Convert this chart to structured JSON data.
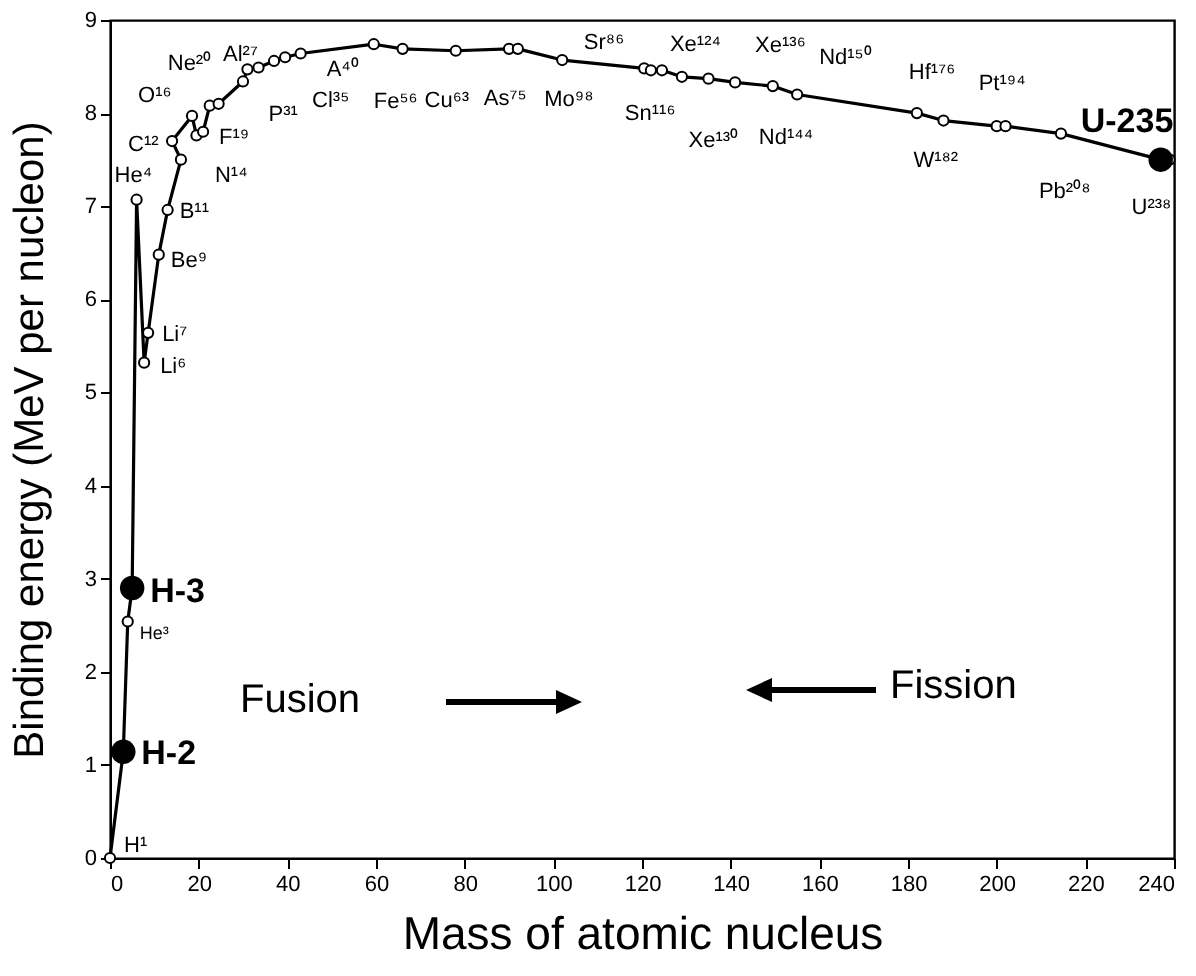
{
  "chart_data": {
    "type": "line",
    "xlabel": "Mass of atomic nucleus",
    "ylabel": "Binding energy (MeV per nucleon)",
    "xlim": [
      0,
      240
    ],
    "xticks": [
      0,
      20,
      40,
      60,
      80,
      100,
      120,
      140,
      160,
      180,
      200,
      220,
      240
    ],
    "ylim": [
      0,
      9
    ],
    "yticks": [
      0,
      1,
      2,
      3,
      4,
      5,
      6,
      7,
      8,
      9
    ],
    "series": [
      {
        "color": "#000000",
        "marker": "circle",
        "x": [
          0,
          3,
          4,
          5,
          6,
          7.7,
          8.6,
          11,
          13,
          16,
          14,
          18.5,
          19.5,
          21,
          22.5,
          24.5,
          30,
          31,
          33.5,
          37,
          39.5,
          43,
          59.5,
          66,
          78,
          90,
          92,
          102,
          120.5,
          122,
          124.5,
          129,
          135,
          141,
          149.5,
          155,
          182,
          188,
          200,
          202,
          214.5,
          237,
          239
        ],
        "values": [
          0,
          1.14,
          2.54,
          2.9,
          7.07,
          5.32,
          5.64,
          6.48,
          6.96,
          7.5,
          7.7,
          7.97,
          7.76,
          7.8,
          8.08,
          8.1,
          8.34,
          8.47,
          8.49,
          8.56,
          8.6,
          8.64,
          8.74,
          8.69,
          8.67,
          8.69,
          8.69,
          8.57,
          8.48,
          8.46,
          8.46,
          8.39,
          8.37,
          8.33,
          8.29,
          8.2,
          8.0,
          7.92,
          7.86,
          7.86,
          7.78,
          7.5,
          7.5
        ]
      },
      {
        "type": "scatter",
        "color": "#000000",
        "marker": "circle",
        "x": [
          3,
          5,
          237
        ],
        "values": [
          1.14,
          2.9,
          7.5
        ]
      }
    ],
    "annotations": [
      {
        "text": "H¹",
        "x": 0,
        "y": 0
      },
      {
        "text": "H-2",
        "x": 3,
        "y": 1.14
      },
      {
        "text": "H-3",
        "x": 5,
        "y": 2.9
      },
      {
        "text": "He³",
        "x": 4,
        "y": 2.54
      },
      {
        "text": "He⁴",
        "x": 6,
        "y": 7.07
      },
      {
        "text": "Li⁶",
        "x": 7.7,
        "y": 5.32
      },
      {
        "text": "Li⁷",
        "x": 8.6,
        "y": 5.64
      },
      {
        "text": "Be⁹",
        "x": 11,
        "y": 6.48
      },
      {
        "text": "B¹¹",
        "x": 13,
        "y": 6.96
      },
      {
        "text": "C¹²",
        "x": 14,
        "y": 7.7
      },
      {
        "text": "N¹⁴",
        "x": 16,
        "y": 7.5
      },
      {
        "text": "O¹⁶",
        "x": 18.5,
        "y": 7.97
      },
      {
        "text": "F¹⁹",
        "x": 21,
        "y": 7.8
      },
      {
        "text": "Ne²⁰",
        "x": 22.5,
        "y": 8.08
      },
      {
        "text": "Al²⁷",
        "x": 30,
        "y": 8.34
      },
      {
        "text": "P³¹",
        "x": 33.5,
        "y": 8.49
      },
      {
        "text": "Cl³⁵",
        "x": 37,
        "y": 8.56
      },
      {
        "text": "A⁴⁰",
        "x": 43,
        "y": 8.64
      },
      {
        "text": "Fe⁵⁶",
        "x": 59.5,
        "y": 8.74
      },
      {
        "text": "Cu⁶³",
        "x": 66,
        "y": 8.69
      },
      {
        "text": "As⁷⁵",
        "x": 78,
        "y": 8.67
      },
      {
        "text": "Sr⁸⁶",
        "x": 92,
        "y": 8.69
      },
      {
        "text": "Mo⁹⁸",
        "x": 102,
        "y": 8.57
      },
      {
        "text": "Sn¹¹⁶",
        "x": 122,
        "y": 8.46
      },
      {
        "text": "Xe¹²⁴",
        "x": 129,
        "y": 8.39
      },
      {
        "text": "Xe¹³⁰",
        "x": 135,
        "y": 8.37
      },
      {
        "text": "Xe¹³⁶",
        "x": 141,
        "y": 8.33
      },
      {
        "text": "Nd¹⁴⁴",
        "x": 149.5,
        "y": 8.29
      },
      {
        "text": "Nd¹⁵⁰",
        "x": 155,
        "y": 8.2
      },
      {
        "text": "Hf¹⁷⁶",
        "x": 182,
        "y": 8.0
      },
      {
        "text": "W¹⁸²",
        "x": 188,
        "y": 7.92
      },
      {
        "text": "Pt¹⁹⁴",
        "x": 200,
        "y": 7.86
      },
      {
        "text": "Pb²⁰⁸",
        "x": 214.5,
        "y": 7.78
      },
      {
        "text": "U-235",
        "x": 237,
        "y": 7.5
      },
      {
        "text": "U²³⁸",
        "x": 239,
        "y": 7.5
      },
      "Fusion",
      "Fission"
    ]
  }
}
